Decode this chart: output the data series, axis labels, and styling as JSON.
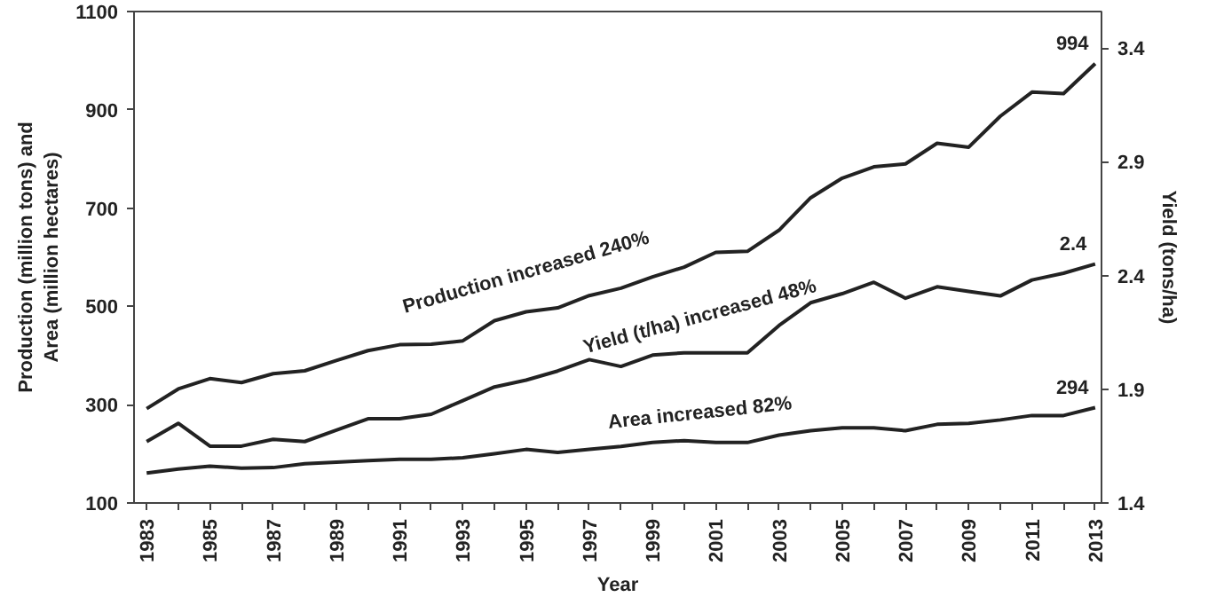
{
  "chart_data": {
    "type": "line",
    "xlabel": "Year",
    "ylabel": "Production (million tons) and\nArea (million hectares)",
    "y2label": "Yield (tons/ha)",
    "x": [
      1983,
      1984,
      1985,
      1986,
      1987,
      1988,
      1989,
      1990,
      1991,
      1992,
      1993,
      1994,
      1995,
      1996,
      1997,
      1998,
      1999,
      2000,
      2001,
      2002,
      2003,
      2004,
      2005,
      2006,
      2007,
      2008,
      2009,
      2010,
      2011,
      2012,
      2013
    ],
    "series": [
      {
        "color": "#222222",
        "values": [
          292,
          332,
          353,
          345,
          363,
          369,
          390,
          410,
          422,
          423,
          430,
          471,
          489,
          497,
          522,
          537,
          560,
          580,
          610,
          612,
          655,
          721,
          761,
          784,
          790,
          832,
          824,
          887,
          936,
          933,
          994
        ]
      },
      {
        "color": "#222222",
        "axis": "y2",
        "values": [
          1.67,
          1.75,
          1.65,
          1.65,
          1.68,
          1.67,
          1.72,
          1.77,
          1.77,
          1.79,
          1.85,
          1.91,
          1.94,
          1.98,
          2.03,
          2.0,
          2.05,
          2.06,
          2.06,
          2.06,
          2.18,
          2.28,
          2.32,
          2.37,
          2.3,
          2.35,
          2.33,
          2.31,
          2.38,
          2.41,
          2.45
        ]
      },
      {
        "color": "#222222",
        "values": [
          161,
          169,
          175,
          171,
          172,
          180,
          183,
          186,
          189,
          189,
          192,
          200,
          209,
          203,
          209,
          215,
          223,
          227,
          223,
          223,
          238,
          247,
          253,
          253,
          247,
          260,
          262,
          269,
          278,
          278,
          294
        ]
      }
    ],
    "annotations": [
      "Production increased 240%",
      "Yield (t/ha) increased 48%",
      "Area increased 82%",
      {
        "text": "994",
        "x": 2013,
        "y": 994
      },
      "2.4",
      {
        "text": "294",
        "x": 2013,
        "y": 294
      }
    ],
    "xlim": [
      1982.6,
      2013.2
    ],
    "xticks": [
      1983,
      {
        "value": 1984,
        "label": null
      },
      1985,
      {
        "value": 1986,
        "label": null
      },
      1987,
      {
        "value": 1988,
        "label": null
      },
      1989,
      {
        "value": 1990,
        "label": null
      },
      1991,
      {
        "value": 1992,
        "label": null
      },
      1993,
      {
        "value": 1994,
        "label": null
      },
      1995,
      {
        "value": 1996,
        "label": null
      },
      1997,
      {
        "value": 1998,
        "label": null
      },
      1999,
      {
        "value": 2000,
        "label": null
      },
      2001,
      {
        "value": 2002,
        "label": null
      },
      2003,
      {
        "value": 2004,
        "label": null
      },
      2005,
      {
        "value": 2006,
        "label": null
      },
      2007,
      {
        "value": 2008,
        "label": null
      },
      2009,
      {
        "value": 2010,
        "label": null
      },
      2011,
      {
        "value": 2012,
        "label": null
      },
      2013
    ],
    "ylim": [
      100,
      1100
    ],
    "yticks": [
      100,
      300,
      500,
      700,
      900,
      1100
    ],
    "y2lim": [
      1.4,
      3.56
    ],
    "y2ticks": [
      1.4,
      1.9,
      2.4,
      2.9,
      3.4
    ],
    "grid": false,
    "marker": "none",
    "line_style": "solid"
  }
}
